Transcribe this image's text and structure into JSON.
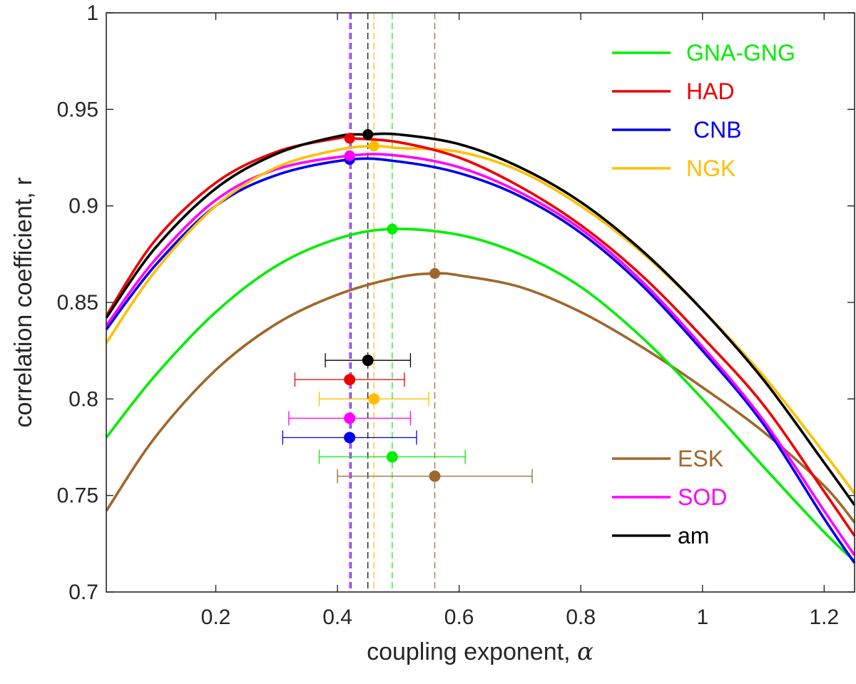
{
  "chart_data": {
    "type": "line",
    "title": "",
    "xlabel": "coupling exponent, ",
    "xlabel_symbol": "α",
    "ylabel": "correlation coefficient, r",
    "xlim": [
      0.02,
      1.25
    ],
    "ylim": [
      0.7,
      1.0
    ],
    "xticks": [
      0.2,
      0.4,
      0.6,
      0.8,
      1.0,
      1.2
    ],
    "xtick_labels": [
      "0.2",
      "0.4",
      "0.6",
      "0.8",
      "1",
      "1.2"
    ],
    "yticks": [
      0.7,
      0.75,
      0.8,
      0.85,
      0.9,
      0.95,
      1.0
    ],
    "ytick_labels": [
      "0.7",
      "0.75",
      "0.8",
      "0.85",
      "0.9",
      "0.95",
      "1"
    ],
    "grid": false,
    "series": [
      {
        "name": "GNA-GNG",
        "color": "#00ee00",
        "x": [
          0.02,
          0.1,
          0.2,
          0.3,
          0.4,
          0.49,
          0.6,
          0.7,
          0.8,
          0.9,
          1.0,
          1.1,
          1.2,
          1.25
        ],
        "y": [
          0.78,
          0.812,
          0.845,
          0.869,
          0.883,
          0.888,
          0.885,
          0.875,
          0.858,
          0.832,
          0.8,
          0.765,
          0.731,
          0.716
        ],
        "peak": {
          "x": 0.49,
          "y": 0.888
        },
        "err": {
          "center": 0.49,
          "low": 0.37,
          "high": 0.61,
          "y": 0.77
        }
      },
      {
        "name": "HAD",
        "color": "#ee0000",
        "x": [
          0.02,
          0.1,
          0.2,
          0.3,
          0.4,
          0.42,
          0.5,
          0.6,
          0.7,
          0.8,
          0.9,
          1.0,
          1.1,
          1.2,
          1.25
        ],
        "y": [
          0.843,
          0.882,
          0.912,
          0.928,
          0.935,
          0.935,
          0.933,
          0.925,
          0.91,
          0.89,
          0.864,
          0.832,
          0.797,
          0.752,
          0.729
        ],
        "peak": {
          "x": 0.42,
          "y": 0.935
        },
        "err": {
          "center": 0.42,
          "low": 0.33,
          "high": 0.51,
          "y": 0.81
        }
      },
      {
        "name": "CNB",
        "color": "#0000ee",
        "x": [
          0.02,
          0.1,
          0.2,
          0.3,
          0.42,
          0.5,
          0.6,
          0.7,
          0.8,
          0.9,
          1.0,
          1.1,
          1.2,
          1.25
        ],
        "y": [
          0.836,
          0.869,
          0.9,
          0.916,
          0.924,
          0.923,
          0.917,
          0.905,
          0.886,
          0.859,
          0.825,
          0.787,
          0.738,
          0.715
        ],
        "peak": {
          "x": 0.42,
          "y": 0.924
        },
        "err": {
          "center": 0.42,
          "low": 0.31,
          "high": 0.53,
          "y": 0.78
        }
      },
      {
        "name": "NGK",
        "color": "#ffbf00",
        "x": [
          0.02,
          0.1,
          0.2,
          0.3,
          0.4,
          0.46,
          0.5,
          0.6,
          0.7,
          0.8,
          0.9,
          1.0,
          1.1,
          1.2,
          1.25
        ],
        "y": [
          0.829,
          0.866,
          0.9,
          0.92,
          0.929,
          0.931,
          0.93,
          0.928,
          0.918,
          0.9,
          0.876,
          0.846,
          0.812,
          0.772,
          0.751
        ],
        "peak": {
          "x": 0.46,
          "y": 0.931
        },
        "err": {
          "center": 0.46,
          "low": 0.37,
          "high": 0.55,
          "y": 0.8
        }
      },
      {
        "name": "ESK",
        "color": "#a0672c",
        "x": [
          0.02,
          0.1,
          0.2,
          0.3,
          0.4,
          0.5,
          0.56,
          0.6,
          0.7,
          0.8,
          0.9,
          1.0,
          1.1,
          1.2,
          1.25
        ],
        "y": [
          0.742,
          0.78,
          0.815,
          0.839,
          0.854,
          0.863,
          0.865,
          0.864,
          0.858,
          0.845,
          0.827,
          0.806,
          0.783,
          0.755,
          0.736
        ],
        "peak": {
          "x": 0.56,
          "y": 0.865
        },
        "err": {
          "center": 0.56,
          "low": 0.4,
          "high": 0.72,
          "y": 0.76
        }
      },
      {
        "name": "SOD",
        "color": "#ff00ff",
        "x": [
          0.02,
          0.1,
          0.2,
          0.3,
          0.42,
          0.5,
          0.6,
          0.7,
          0.8,
          0.9,
          1.0,
          1.1,
          1.2,
          1.25
        ],
        "y": [
          0.838,
          0.872,
          0.903,
          0.919,
          0.926,
          0.926,
          0.92,
          0.907,
          0.888,
          0.861,
          0.827,
          0.789,
          0.742,
          0.719
        ],
        "peak": {
          "x": 0.42,
          "y": 0.926
        },
        "err": {
          "center": 0.42,
          "low": 0.32,
          "high": 0.52,
          "y": 0.79
        }
      },
      {
        "name": "am",
        "color": "#000000",
        "x": [
          0.02,
          0.1,
          0.2,
          0.3,
          0.4,
          0.45,
          0.5,
          0.6,
          0.7,
          0.8,
          0.9,
          1.0,
          1.1,
          1.2,
          1.25
        ],
        "y": [
          0.842,
          0.878,
          0.909,
          0.927,
          0.936,
          0.937,
          0.937,
          0.932,
          0.92,
          0.902,
          0.877,
          0.846,
          0.81,
          0.767,
          0.745
        ],
        "peak": {
          "x": 0.45,
          "y": 0.937
        },
        "err": {
          "center": 0.45,
          "low": 0.38,
          "high": 0.52,
          "y": 0.82
        }
      }
    ],
    "legend_groups": [
      {
        "position": "top-right",
        "items": [
          "GNA-GNG",
          "HAD",
          "CNB",
          "NGK"
        ],
        "label_colored": true
      },
      {
        "position": "bottom-right",
        "items": [
          "ESK",
          "SOD",
          "am"
        ],
        "label_colored": [
          true,
          true,
          false
        ]
      }
    ]
  }
}
